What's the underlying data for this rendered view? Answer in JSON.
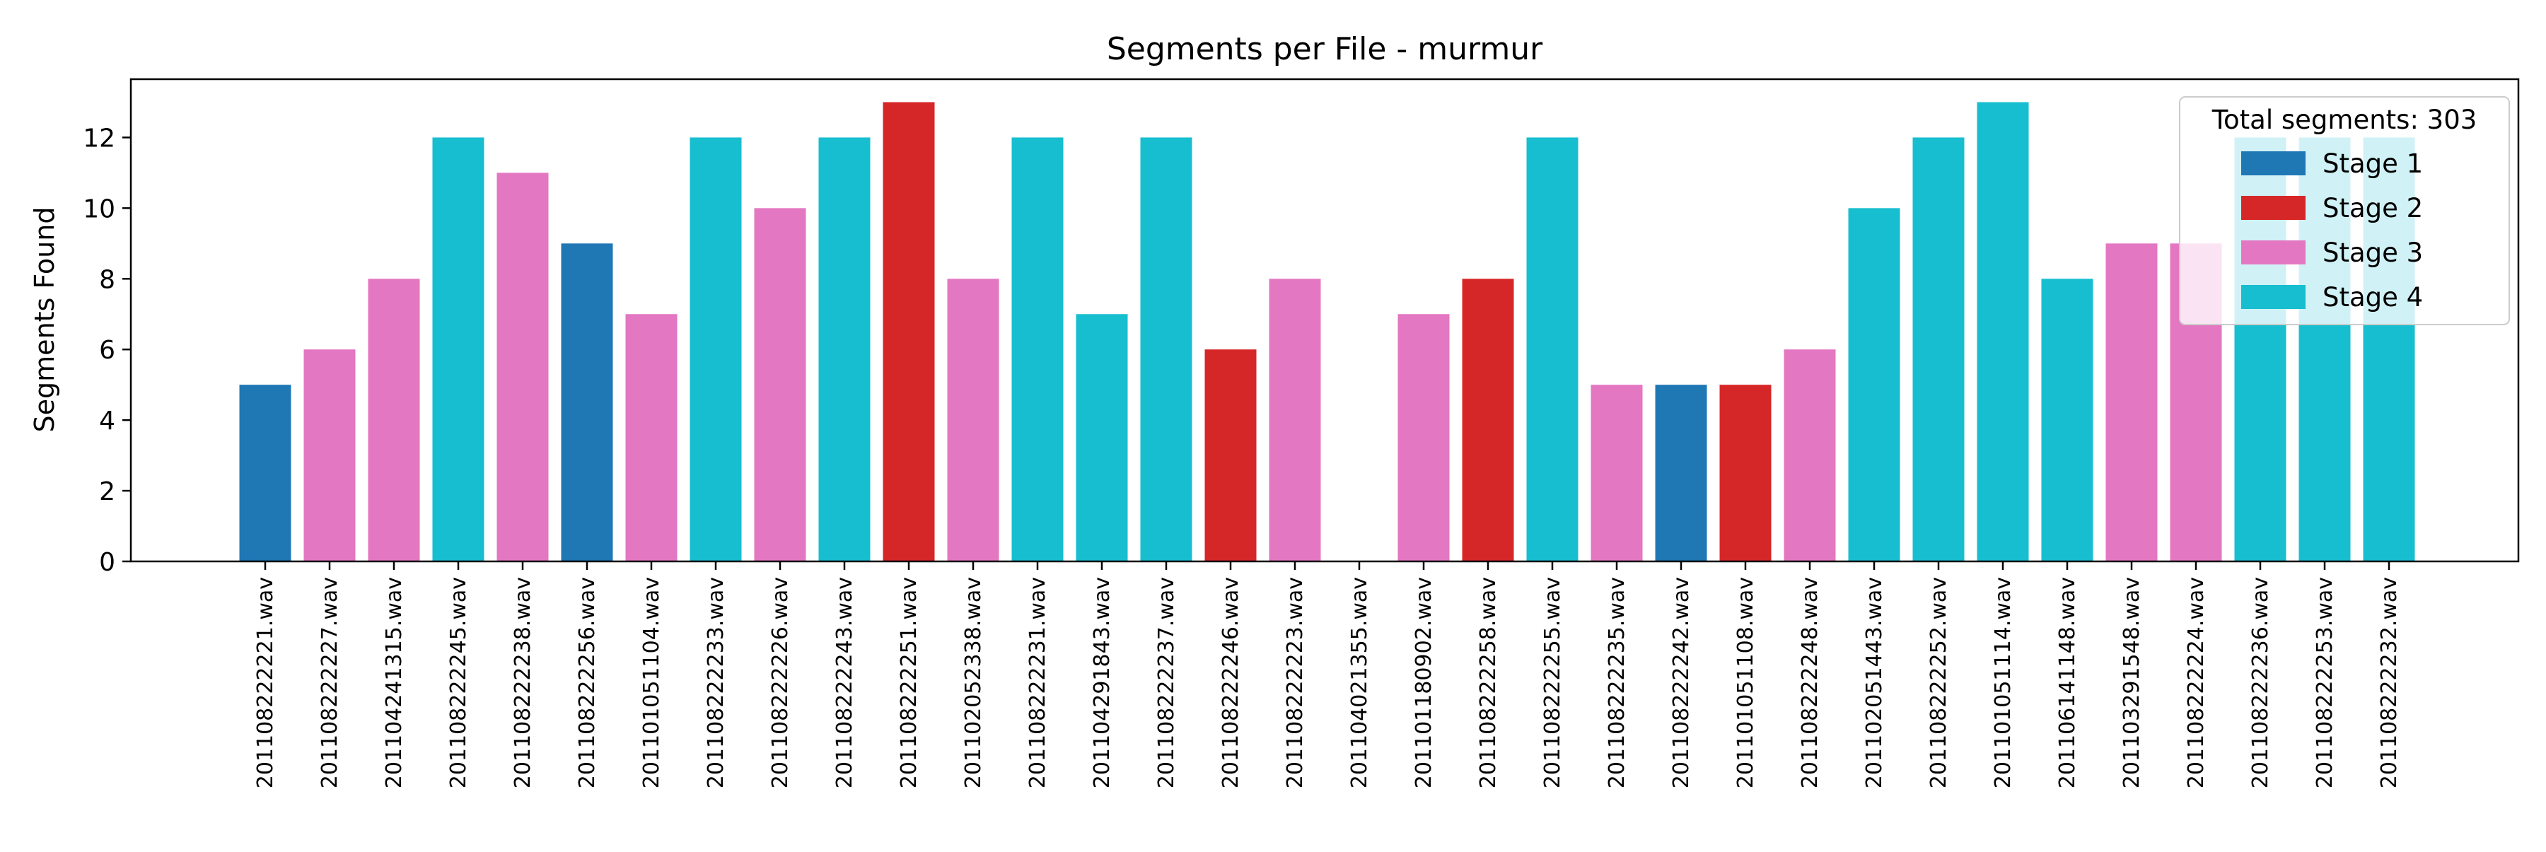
{
  "chart_data": {
    "type": "bar",
    "title": "Segments per File - murmur",
    "xlabel": "",
    "ylabel": "Segments Found",
    "ylim": [
      0,
      13.65
    ],
    "yticks": [
      0,
      2,
      4,
      6,
      8,
      10,
      12
    ],
    "grid": false,
    "legend": {
      "placement": "upper right",
      "title": "Total segments: 303",
      "entries": [
        {
          "name": "Stage 1",
          "color": "#1f77b4"
        },
        {
          "name": "Stage 2",
          "color": "#d62728"
        },
        {
          "name": "Stage 3",
          "color": "#e377c2"
        },
        {
          "name": "Stage 4",
          "color": "#17becf"
        }
      ]
    },
    "categories": [
      "201108222221.wav",
      "201108222227.wav",
      "201104241315.wav",
      "201108222245.wav",
      "201108222238.wav",
      "201108222256.wav",
      "201101051104.wav",
      "201108222233.wav",
      "201108222226.wav",
      "201108222243.wav",
      "201108222251.wav",
      "201102052338.wav",
      "201108222231.wav",
      "201104291843.wav",
      "201108222237.wav",
      "201108222246.wav",
      "201108222223.wav",
      "201104021355.wav",
      "201101180902.wav",
      "201108222258.wav",
      "201108222255.wav",
      "201108222235.wav",
      "201108222242.wav",
      "201101051108.wav",
      "201108222248.wav",
      "201102051443.wav",
      "201108222252.wav",
      "201101051114.wav",
      "201106141148.wav",
      "201103291548.wav",
      "201108222224.wav",
      "201108222236.wav",
      "201108222253.wav",
      "201108222232.wav"
    ],
    "values": [
      5,
      6,
      8,
      12,
      11,
      9,
      7,
      12,
      10,
      12,
      13,
      8,
      12,
      7,
      12,
      6,
      8,
      0,
      7,
      8,
      12,
      5,
      5,
      5,
      6,
      10,
      12,
      13,
      8,
      9,
      9,
      12,
      12,
      12
    ],
    "stages": [
      "Stage 1",
      "Stage 3",
      "Stage 3",
      "Stage 4",
      "Stage 3",
      "Stage 1",
      "Stage 3",
      "Stage 4",
      "Stage 3",
      "Stage 4",
      "Stage 2",
      "Stage 3",
      "Stage 4",
      "Stage 4",
      "Stage 4",
      "Stage 2",
      "Stage 3",
      "",
      "Stage 3",
      "Stage 2",
      "Stage 4",
      "Stage 3",
      "Stage 1",
      "Stage 2",
      "Stage 3",
      "Stage 4",
      "Stage 4",
      "Stage 4",
      "Stage 4",
      "Stage 3",
      "Stage 3",
      "Stage 4",
      "Stage 4",
      "Stage 4"
    ]
  }
}
